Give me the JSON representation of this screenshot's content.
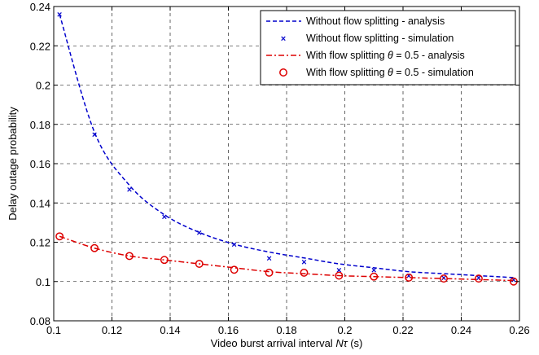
{
  "chart_data": {
    "type": "line",
    "title": "",
    "xlabel": "Video burst arrival interval Nτ  (s)",
    "ylabel": "Delay outage probability",
    "xlim": [
      0.1,
      0.26
    ],
    "ylim": [
      0.08,
      0.24
    ],
    "xticks": [
      "0.1",
      "0.12",
      "0.14",
      "0.16",
      "0.18",
      "0.2",
      "0.22",
      "0.24",
      "0.26"
    ],
    "yticks": [
      "0.08",
      "0.1",
      "0.12",
      "0.14",
      "0.16",
      "0.18",
      "0.2",
      "0.22",
      "0.24"
    ],
    "grid": true,
    "grid_style": "dashed",
    "legend_position": "top-right",
    "series": [
      {
        "name": "Without flow splitting - analysis",
        "style": "dashed-line",
        "color": "#0000cc",
        "x": [
          0.102,
          0.114,
          0.126,
          0.138,
          0.15,
          0.162,
          0.174,
          0.186,
          0.198,
          0.21,
          0.222,
          0.234,
          0.246,
          0.258
        ],
        "y": [
          0.236,
          0.176,
          0.149,
          0.134,
          0.125,
          0.119,
          0.115,
          0.112,
          0.109,
          0.107,
          0.105,
          0.104,
          0.103,
          0.102
        ]
      },
      {
        "name": "Without flow splitting - simulation",
        "style": "x-marker",
        "color": "#0000cc",
        "x": [
          0.102,
          0.114,
          0.126,
          0.138,
          0.15,
          0.162,
          0.174,
          0.186,
          0.198,
          0.21,
          0.222,
          0.234,
          0.246,
          0.258
        ],
        "y": [
          0.236,
          0.175,
          0.147,
          0.133,
          0.125,
          0.119,
          0.112,
          0.11,
          0.106,
          0.106,
          0.103,
          0.102,
          0.102,
          0.101
        ]
      },
      {
        "name": "With flow splitting θ = 0.5 - analysis",
        "style": "dashdot-line",
        "color": "#dd0000",
        "x": [
          0.102,
          0.114,
          0.126,
          0.138,
          0.15,
          0.162,
          0.174,
          0.186,
          0.198,
          0.21,
          0.222,
          0.234,
          0.246,
          0.258
        ],
        "y": [
          0.123,
          0.117,
          0.113,
          0.111,
          0.109,
          0.107,
          0.105,
          0.104,
          0.103,
          0.1025,
          0.102,
          0.1015,
          0.101,
          0.1005
        ]
      },
      {
        "name": "With flow splitting θ = 0.5 - simulation",
        "style": "circle-marker",
        "color": "#dd0000",
        "x": [
          0.102,
          0.114,
          0.126,
          0.138,
          0.15,
          0.162,
          0.174,
          0.186,
          0.198,
          0.21,
          0.222,
          0.234,
          0.246,
          0.258
        ],
        "y": [
          0.123,
          0.117,
          0.113,
          0.111,
          0.109,
          0.106,
          0.1045,
          0.1045,
          0.103,
          0.1025,
          0.102,
          0.1015,
          0.1015,
          0.1
        ]
      }
    ]
  },
  "legend": {
    "items": [
      {
        "prefix": "Without flow splitting - analysis",
        "theta": "",
        "suffix": ""
      },
      {
        "prefix": "Without flow splitting - simulation",
        "theta": "",
        "suffix": ""
      },
      {
        "prefix": "With flow splitting ",
        "theta": "θ",
        "suffix": " = 0.5 - analysis"
      },
      {
        "prefix": "With flow splitting ",
        "theta": "θ",
        "suffix": " = 0.5 - simulation"
      }
    ]
  },
  "xlabel_parts": {
    "prefix": "Video burst arrival interval ",
    "n": "N",
    "tau": "τ",
    "suffix": "  (s)"
  }
}
